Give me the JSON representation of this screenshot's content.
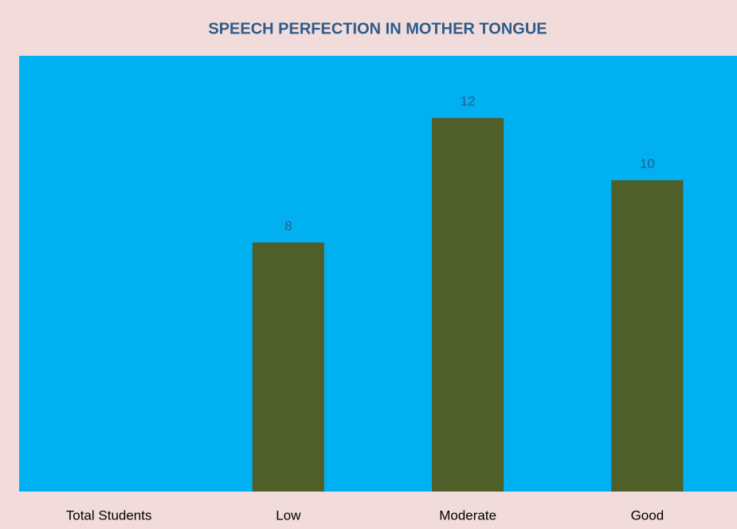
{
  "chart_data": {
    "type": "bar",
    "title": "SPEECH PERFECTION IN MOTHER TONGUE",
    "categories": [
      "Total Students",
      "Low",
      "Moderate",
      "Good"
    ],
    "values": [
      null,
      8,
      12,
      10
    ],
    "color": "#4f5f2a",
    "plot_background": "#00b0f0",
    "ylim": [
      0,
      14
    ]
  }
}
